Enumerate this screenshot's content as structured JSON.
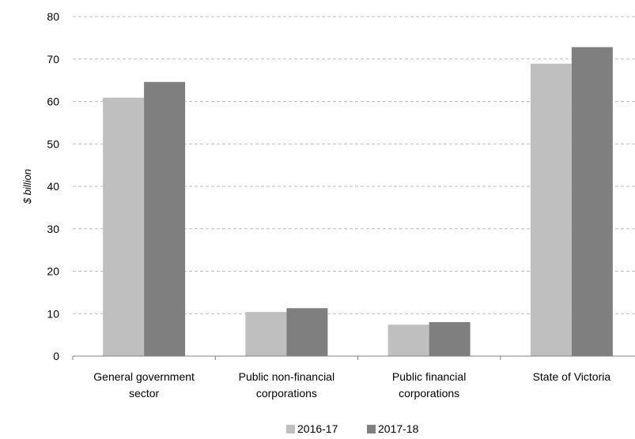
{
  "chart_data": {
    "type": "bar",
    "categories": [
      [
        "General government",
        "sector"
      ],
      [
        "Public non-financial",
        "corporations"
      ],
      [
        "Public financial",
        "corporations"
      ],
      [
        "State of Victoria"
      ]
    ],
    "series": [
      {
        "name": "2016-17",
        "values": [
          60.9,
          10.4,
          7.4,
          68.9
        ],
        "color": "#bfbfbf"
      },
      {
        "name": "2017-18",
        "values": [
          64.6,
          11.3,
          8.0,
          72.8
        ],
        "color": "#7f7f7f"
      }
    ],
    "ylabel": "$ billion",
    "ylim": [
      0,
      80
    ],
    "yticks": [
      0,
      10,
      20,
      30,
      40,
      50,
      60,
      70,
      80
    ],
    "grid": true,
    "legend_position": "bottom"
  }
}
